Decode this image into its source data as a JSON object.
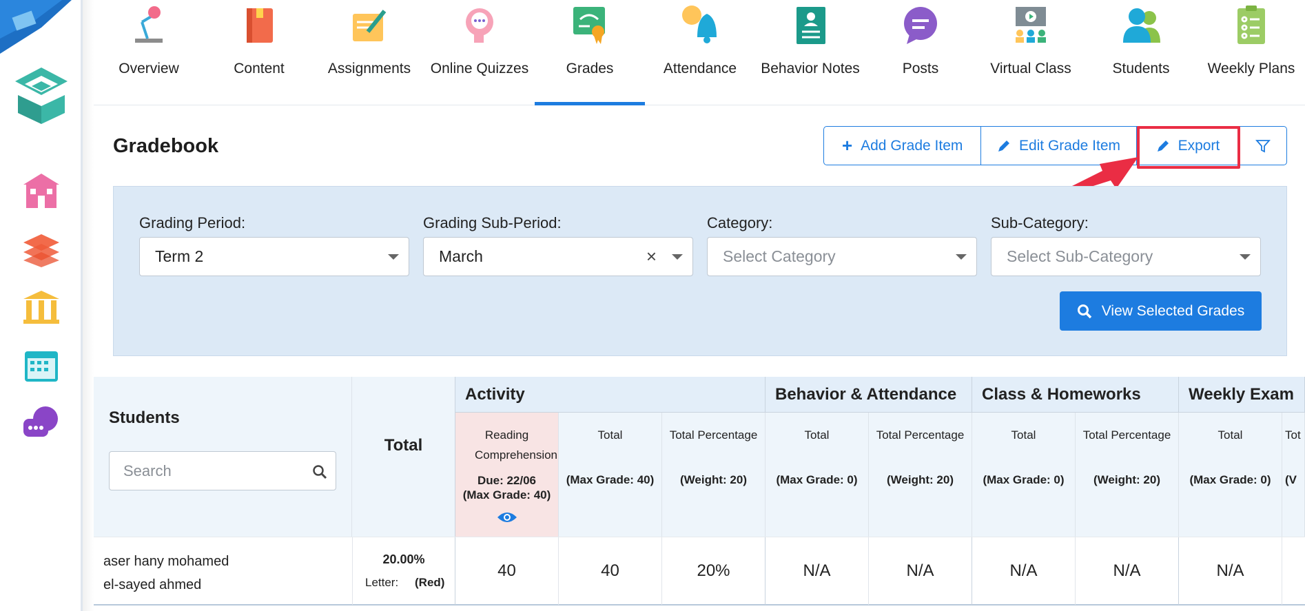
{
  "nav": {
    "items": [
      {
        "label": "Overview",
        "icon": "desk-lamp-icon"
      },
      {
        "label": "Content",
        "icon": "book-icon"
      },
      {
        "label": "Assignments",
        "icon": "pen-paper-icon"
      },
      {
        "label": "Online Quizzes",
        "icon": "head-chat-icon"
      },
      {
        "label": "Grades",
        "icon": "certificate-icon"
      },
      {
        "label": "Attendance",
        "icon": "bell-clock-icon"
      },
      {
        "label": "Behavior Notes",
        "icon": "notebook-icon"
      },
      {
        "label": "Posts",
        "icon": "speech-bubble-icon"
      },
      {
        "label": "Virtual Class",
        "icon": "presentation-icon"
      },
      {
        "label": "Students",
        "icon": "users-icon"
      },
      {
        "label": "Weekly Plans",
        "icon": "clipboard-list-icon"
      }
    ],
    "active": "Grades"
  },
  "page": {
    "title": "Gradebook",
    "actions": {
      "add": "Add Grade Item",
      "edit": "Edit Grade Item",
      "export": "Export"
    }
  },
  "filters": {
    "grading_period": {
      "label": "Grading Period:",
      "value": "Term 2"
    },
    "grading_sub_period": {
      "label": "Grading Sub-Period:",
      "value": "March"
    },
    "category": {
      "label": "Category:",
      "placeholder": "Select Category"
    },
    "sub_category": {
      "label": "Sub-Category:",
      "placeholder": "Select Sub-Category"
    },
    "view_button": "View Selected Grades"
  },
  "table": {
    "students_header": "Students",
    "search_placeholder": "Search",
    "total_header": "Total",
    "groups": [
      "Activity",
      "Behavior & Attendance",
      "Class & Homeworks",
      "Weekly Exam"
    ],
    "subcolumns": [
      {
        "line1": "Reading Comprehension",
        "line2": "Due: 22/06\n(Max Grade: 40)"
      },
      {
        "line1": "Total",
        "line2": "(Max Grade: 40)"
      },
      {
        "line1": "Total Percentage",
        "line2": "(Weight: 20)"
      },
      {
        "line1": "Total",
        "line2": "(Max Grade: 0)"
      },
      {
        "line1": "Total Percentage",
        "line2": "(Weight: 20)"
      },
      {
        "line1": "Total",
        "line2": "(Max Grade: 0)"
      },
      {
        "line1": "Total Percentage",
        "line2": "(Weight: 20)"
      },
      {
        "line1": "Total",
        "line2": "(Max Grade: 0)"
      },
      {
        "line1": "Tot",
        "line2": "(V"
      }
    ],
    "rows": [
      {
        "name_line1": "aser hany mohamed",
        "name_line2": "el-sayed ahmed",
        "total_percent": "20.00%",
        "letter_label": "Letter:",
        "letter_value": "(Red)",
        "cells": [
          "40",
          "40",
          "20%",
          "N/A",
          "N/A",
          "N/A",
          "N/A",
          "N/A"
        ]
      }
    ]
  },
  "colors": {
    "accent": "#1d7ce0",
    "highlight": "#ea2d44",
    "filter_bg": "#dce9f6",
    "pink_col": "#f8e4e4"
  }
}
